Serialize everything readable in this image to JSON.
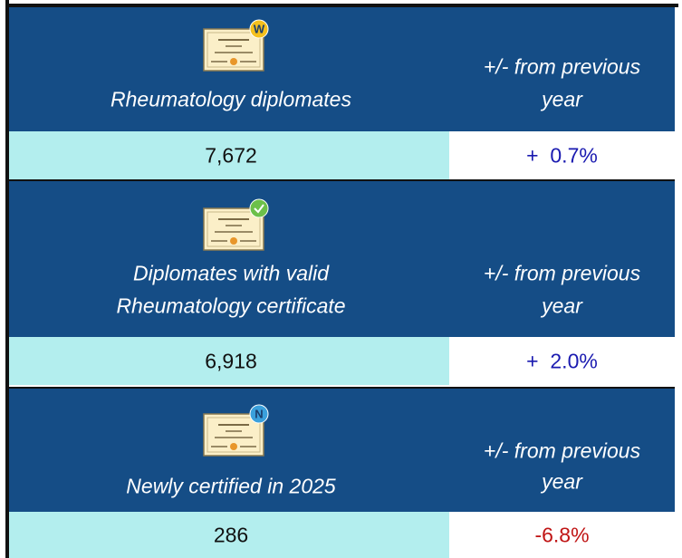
{
  "sections": [
    {
      "badge": "W",
      "label": [
        "Rheumatology diplomates"
      ],
      "change_label": [
        "+/- from previous",
        "year"
      ],
      "value": "7,672",
      "change": "+  0.7%",
      "direction": "up"
    },
    {
      "badge": null,
      "label": [
        "Diplomates with valid",
        "Rheumatology certificate"
      ],
      "change_label": [
        "+/- from previous",
        "year"
      ],
      "value": "6,918",
      "change": "+  2.0%",
      "direction": "up"
    },
    {
      "badge": "N",
      "label": [
        "Newly certified in 2025"
      ],
      "change_label": [
        "+/- from previous",
        "year"
      ],
      "value": "286",
      "change": "-6.8%",
      "direction": "down"
    }
  ]
}
